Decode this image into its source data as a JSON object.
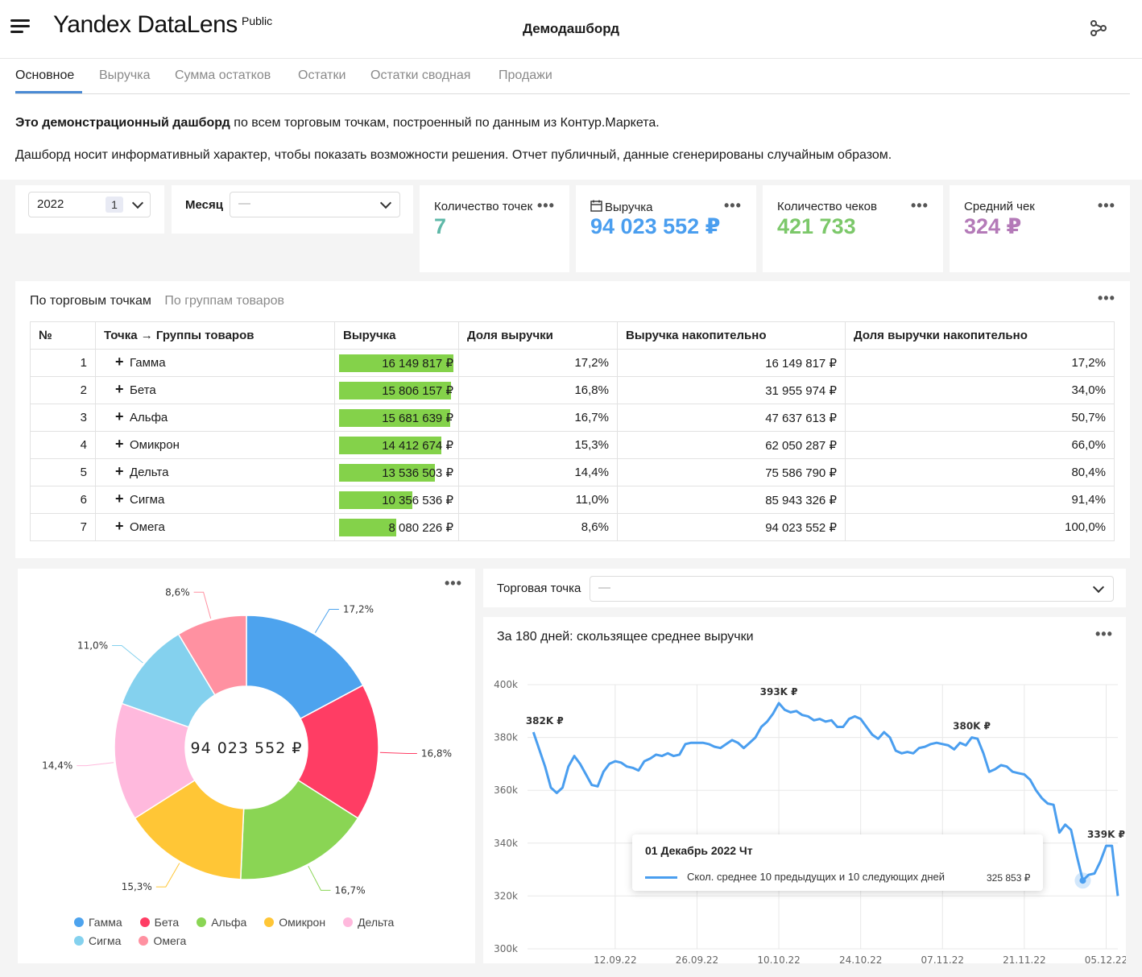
{
  "header": {
    "logo": "Yandex DataLens",
    "logo_sup": "Public",
    "title": "Демодашборд"
  },
  "tabs": [
    {
      "label": "Основное",
      "active": true
    },
    {
      "label": "Выручка"
    },
    {
      "label": "Сумма остатков"
    },
    {
      "label": "Остатки"
    },
    {
      "label": "Остатки сводная"
    },
    {
      "label": "Продажи"
    }
  ],
  "intro": {
    "bold": "Это демонстрационный дашборд",
    "rest": " по всем торговым точкам, построенный по данным из Контур.Маркета.",
    "line2": "Дашборд носит информативный характер, чтобы показать возможности решения. Отчет публичный, данные сгенерированы случайным образом."
  },
  "filters": {
    "year": {
      "value": "2022",
      "count": "1"
    },
    "month": {
      "label": "Месяц",
      "value": "—"
    }
  },
  "kpis": [
    {
      "label": "Количество точек",
      "value": "7",
      "color": "#5fb8a8"
    },
    {
      "label": "Выручка",
      "value": "94 023 552 ₽",
      "color": "#4a9eef"
    },
    {
      "label": "Количество чеков",
      "value": "421 733",
      "color": "#7cc86a"
    },
    {
      "label": "Средний чек",
      "value": "324 ₽",
      "color": "#b47ab8"
    }
  ],
  "table_widget": {
    "tabs": [
      "По торговым точкам",
      "По группам товаров"
    ],
    "columns": [
      "№",
      "Точка → Группы товаров",
      "Выручка",
      "Доля выручки",
      "Выручка накопительно",
      "Доля выручки накопительно"
    ],
    "rows": [
      {
        "n": "1",
        "name": "Гамма",
        "revenue": "16 149 817 ₽",
        "share": "17,2%",
        "cum": "16 149 817 ₽",
        "cum_share": "17,2%",
        "bar": 1.0
      },
      {
        "n": "2",
        "name": "Бета",
        "revenue": "15 806 157 ₽",
        "share": "16,8%",
        "cum": "31 955 974 ₽",
        "cum_share": "34,0%",
        "bar": 0.979
      },
      {
        "n": "3",
        "name": "Альфа",
        "revenue": "15 681 639 ₽",
        "share": "16,7%",
        "cum": "47 637 613 ₽",
        "cum_share": "50,7%",
        "bar": 0.971
      },
      {
        "n": "4",
        "name": "Омикрон",
        "revenue": "14 412 674 ₽",
        "share": "15,3%",
        "cum": "62 050 287 ₽",
        "cum_share": "66,0%",
        "bar": 0.892
      },
      {
        "n": "5",
        "name": "Дельта",
        "revenue": "13 536 503 ₽",
        "share": "14,4%",
        "cum": "75 586 790 ₽",
        "cum_share": "80,4%",
        "bar": 0.838
      },
      {
        "n": "6",
        "name": "Сигма",
        "revenue": "10 356 536 ₽",
        "share": "11,0%",
        "cum": "85 943 326 ₽",
        "cum_share": "91,4%",
        "bar": 0.641
      },
      {
        "n": "7",
        "name": "Омега",
        "revenue": "8 080 226 ₽",
        "share": "8,6%",
        "cum": "94 023 552 ₽",
        "cum_share": "100,0%",
        "bar": 0.5
      }
    ]
  },
  "point_filter": {
    "label": "Торговая точка",
    "value": "—"
  },
  "chart_data": [
    {
      "type": "pie",
      "title": "",
      "center_label": "94 023 552 ₽",
      "slices": [
        {
          "name": "Гамма",
          "value": 17.2,
          "label": "17,2%",
          "color": "#4da3ee"
        },
        {
          "name": "Бета",
          "value": 16.8,
          "label": "16,8%",
          "color": "#ff3d64"
        },
        {
          "name": "Альфа",
          "value": 16.7,
          "label": "16,7%",
          "color": "#8ad554"
        },
        {
          "name": "Омикрон",
          "value": 15.3,
          "label": "15,3%",
          "color": "#ffc636"
        },
        {
          "name": "Дельта",
          "value": 14.4,
          "label": "14,4%",
          "color": "#ffb9dd"
        },
        {
          "name": "Сигма",
          "value": 11.0,
          "label": "11,0%",
          "color": "#84d1ee"
        },
        {
          "name": "Омега",
          "value": 8.6,
          "label": "8,6%",
          "color": "#ff91a1"
        }
      ],
      "legend": "bottom-left"
    },
    {
      "type": "line",
      "title": "За 180 дней: скользящее среднее выручки",
      "ylim": [
        300000,
        400000
      ],
      "yticks": [
        {
          "v": 300000,
          "label": "300k"
        },
        {
          "v": 320000,
          "label": "320k"
        },
        {
          "v": 340000,
          "label": "340k"
        },
        {
          "v": 360000,
          "label": "360k"
        },
        {
          "v": 380000,
          "label": "380k"
        },
        {
          "v": 400000,
          "label": "400k"
        }
      ],
      "xlim": [
        "2022-08-28",
        "2022-12-07"
      ],
      "xticks": [
        {
          "date": "2022-09-12",
          "label": "12.09.22"
        },
        {
          "date": "2022-09-26",
          "label": "26.09.22"
        },
        {
          "date": "2022-10-10",
          "label": "10.10.22"
        },
        {
          "date": "2022-10-24",
          "label": "24.10.22"
        },
        {
          "date": "2022-11-07",
          "label": "07.11.22"
        },
        {
          "date": "2022-11-21",
          "label": "21.11.22"
        },
        {
          "date": "2022-12-05",
          "label": "05.12.22"
        }
      ],
      "series": [
        {
          "name": "Скол. среднее 10 предыдущих и 10 следующих дней",
          "color": "#4a9eef",
          "points": [
            [
              "2022-08-29",
              382000
            ],
            [
              "2022-08-31",
              369000
            ],
            [
              "2022-09-01",
              361000
            ],
            [
              "2022-09-02",
              359000
            ],
            [
              "2022-09-03",
              361000
            ],
            [
              "2022-09-04",
              369000
            ],
            [
              "2022-09-05",
              373000
            ],
            [
              "2022-09-06",
              370000
            ],
            [
              "2022-09-07",
              366000
            ],
            [
              "2022-09-08",
              362000
            ],
            [
              "2022-09-09",
              361500
            ],
            [
              "2022-09-10",
              367000
            ],
            [
              "2022-09-11",
              370000
            ],
            [
              "2022-09-12",
              371000
            ],
            [
              "2022-09-13",
              370500
            ],
            [
              "2022-09-14",
              369000
            ],
            [
              "2022-09-15",
              368500
            ],
            [
              "2022-09-16",
              367500
            ],
            [
              "2022-09-17",
              371000
            ],
            [
              "2022-09-18",
              372000
            ],
            [
              "2022-09-19",
              373500
            ],
            [
              "2022-09-20",
              373000
            ],
            [
              "2022-09-21",
              374000
            ],
            [
              "2022-09-22",
              373000
            ],
            [
              "2022-09-23",
              373500
            ],
            [
              "2022-09-24",
              377500
            ],
            [
              "2022-09-25",
              378000
            ],
            [
              "2022-09-26",
              378000
            ],
            [
              "2022-09-27",
              378000
            ],
            [
              "2022-09-28",
              377500
            ],
            [
              "2022-09-29",
              376500
            ],
            [
              "2022-09-30",
              376000
            ],
            [
              "2022-10-01",
              377500
            ],
            [
              "2022-10-02",
              379000
            ],
            [
              "2022-10-03",
              378000
            ],
            [
              "2022-10-04",
              376000
            ],
            [
              "2022-10-05",
              378000
            ],
            [
              "2022-10-06",
              380000
            ],
            [
              "2022-10-07",
              384000
            ],
            [
              "2022-10-08",
              386000
            ],
            [
              "2022-10-09",
              389000
            ],
            [
              "2022-10-10",
              393000
            ],
            [
              "2022-10-11",
              390500
            ],
            [
              "2022-10-12",
              389500
            ],
            [
              "2022-10-13",
              390000
            ],
            [
              "2022-10-14",
              388500
            ],
            [
              "2022-10-15",
              388000
            ],
            [
              "2022-10-16",
              386500
            ],
            [
              "2022-10-17",
              387000
            ],
            [
              "2022-10-18",
              386000
            ],
            [
              "2022-10-19",
              386500
            ],
            [
              "2022-10-20",
              384000
            ],
            [
              "2022-10-21",
              384000
            ],
            [
              "2022-10-22",
              387000
            ],
            [
              "2022-10-23",
              388000
            ],
            [
              "2022-10-24",
              387000
            ],
            [
              "2022-10-25",
              384000
            ],
            [
              "2022-10-26",
              381000
            ],
            [
              "2022-10-27",
              379500
            ],
            [
              "2022-10-28",
              382000
            ],
            [
              "2022-10-29",
              380000
            ],
            [
              "2022-10-30",
              375000
            ],
            [
              "2022-10-31",
              374000
            ],
            [
              "2022-11-01",
              374500
            ],
            [
              "2022-11-02",
              374000
            ],
            [
              "2022-11-03",
              376000
            ],
            [
              "2022-11-04",
              376500
            ],
            [
              "2022-11-05",
              377500
            ],
            [
              "2022-11-06",
              378000
            ],
            [
              "2022-11-07",
              377500
            ],
            [
              "2022-11-08",
              377000
            ],
            [
              "2022-11-09",
              375500
            ],
            [
              "2022-11-10",
              378000
            ],
            [
              "2022-11-11",
              377000
            ],
            [
              "2022-11-12",
              380000
            ],
            [
              "2022-11-13",
              379500
            ],
            [
              "2022-11-14",
              374000
            ],
            [
              "2022-11-15",
              367000
            ],
            [
              "2022-11-16",
              368000
            ],
            [
              "2022-11-17",
              369500
            ],
            [
              "2022-11-18",
              369000
            ],
            [
              "2022-11-19",
              367000
            ],
            [
              "2022-11-20",
              366500
            ],
            [
              "2022-11-21",
              366000
            ],
            [
              "2022-11-22",
              364000
            ],
            [
              "2022-11-23",
              360000
            ],
            [
              "2022-11-24",
              357000
            ],
            [
              "2022-11-25",
              355000
            ],
            [
              "2022-11-26",
              354500
            ],
            [
              "2022-11-27",
              344000
            ],
            [
              "2022-11-28",
              347000
            ],
            [
              "2022-11-29",
              345000
            ],
            [
              "2022-11-30",
              335000
            ],
            [
              "2022-12-01",
              325853
            ],
            [
              "2022-12-02",
              328000
            ],
            [
              "2022-12-03",
              328500
            ],
            [
              "2022-12-04",
              333000
            ],
            [
              "2022-12-05",
              339000
            ],
            [
              "2022-12-06",
              339000
            ],
            [
              "2022-12-07",
              320000
            ]
          ]
        }
      ],
      "annotations": [
        {
          "date": "2022-08-29",
          "value": 382000,
          "label": "382K ₽"
        },
        {
          "date": "2022-10-10",
          "value": 393000,
          "label": "393K ₽"
        },
        {
          "date": "2022-11-12",
          "value": 380000,
          "label": "380K ₽"
        },
        {
          "date": "2022-12-05",
          "value": 339000,
          "label": "339K ₽"
        }
      ],
      "tooltip": {
        "date": "2022-12-01",
        "date_label": "01 Декабрь 2022 Чт",
        "series_label": "Скол. среднее 10 предыдущих и 10 следующих дней",
        "value_label": "325 853 ₽"
      },
      "grid": true
    }
  ]
}
